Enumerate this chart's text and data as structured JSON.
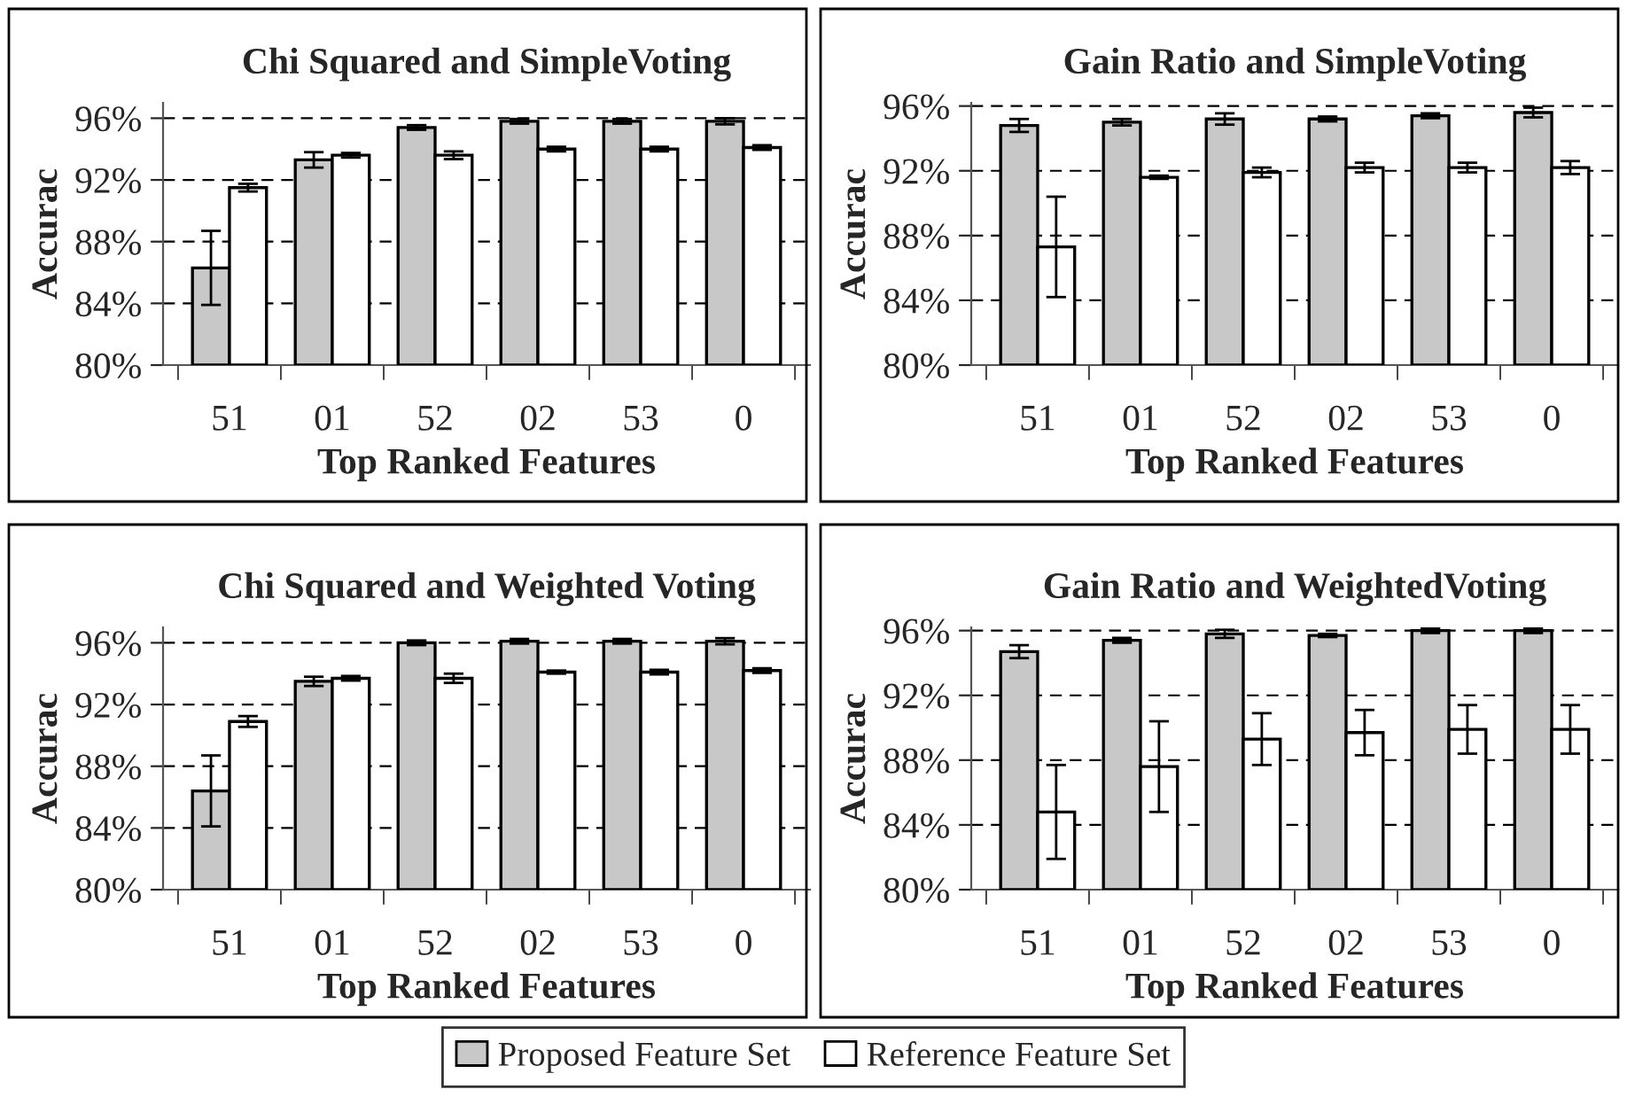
{
  "chart_data": [
    {
      "type": "bar",
      "title": "Chi Squared and SimpleVoting",
      "xlabel": "Top Ranked Features",
      "ylabel": "Accurac",
      "categories": [
        "51",
        "01",
        "52",
        "02",
        "53",
        "0"
      ],
      "ylim": [
        80,
        97
      ],
      "yticks": [
        {
          "value": 80,
          "label": "80%"
        },
        {
          "value": 84,
          "label": "84%"
        },
        {
          "value": 88,
          "label": "88%"
        },
        {
          "value": 92,
          "label": "92%"
        },
        {
          "value": 96,
          "label": "96%"
        }
      ],
      "grid": "y",
      "legend": "bottom",
      "series": [
        {
          "name": "Proposed Feature Set",
          "color": "#c8c8c8",
          "values": [
            86.3,
            93.3,
            95.4,
            95.8,
            95.8,
            95.8
          ],
          "errors": [
            2.4,
            0.5,
            0.15,
            0.15,
            0.15,
            0.2
          ]
        },
        {
          "name": "Reference Feature Set",
          "color": "#ffffff",
          "values": [
            91.5,
            93.6,
            93.6,
            94.0,
            94.0,
            94.1
          ],
          "errors": [
            0.25,
            0.15,
            0.25,
            0.15,
            0.15,
            0.15
          ]
        }
      ]
    },
    {
      "type": "bar",
      "title": "Gain Ratio and SimpleVoting",
      "xlabel": "Top Ranked Features",
      "ylabel": "Accurac",
      "categories": [
        "51",
        "01",
        "52",
        "02",
        "53",
        "0"
      ],
      "ylim": [
        80,
        96.2
      ],
      "yticks": [
        {
          "value": 80,
          "label": "80%"
        },
        {
          "value": 84,
          "label": "84%"
        },
        {
          "value": 88,
          "label": "88%"
        },
        {
          "value": 92,
          "label": "92%"
        },
        {
          "value": 96,
          "label": "96%"
        }
      ],
      "grid": "y",
      "series": [
        {
          "color": "#c8c8c8",
          "values": [
            94.8,
            95.0,
            95.2,
            95.2,
            95.4,
            95.6
          ],
          "errors": [
            0.4,
            0.2,
            0.35,
            0.15,
            0.15,
            0.3
          ]
        },
        {
          "color": "#ffffff",
          "values": [
            87.3,
            91.6,
            91.9,
            92.2,
            92.2,
            92.2
          ],
          "errors": [
            3.1,
            0.1,
            0.3,
            0.3,
            0.3,
            0.4
          ]
        }
      ]
    },
    {
      "type": "bar",
      "title": "Chi Squared and Weighted Voting",
      "xlabel": "Top Ranked Features",
      "ylabel": "Accurac",
      "categories": [
        "51",
        "01",
        "52",
        "02",
        "53",
        "0"
      ],
      "ylim": [
        80,
        97
      ],
      "yticks": [
        {
          "value": 80,
          "label": "80%"
        },
        {
          "value": 84,
          "label": "84%"
        },
        {
          "value": 88,
          "label": "88%"
        },
        {
          "value": 92,
          "label": "92%"
        },
        {
          "value": 96,
          "label": "96%"
        }
      ],
      "grid": "y",
      "series": [
        {
          "color": "#c8c8c8",
          "values": [
            86.4,
            93.5,
            96.0,
            96.1,
            96.1,
            96.1
          ],
          "errors": [
            2.3,
            0.3,
            0.15,
            0.15,
            0.15,
            0.2
          ]
        },
        {
          "color": "#ffffff",
          "values": [
            90.9,
            93.7,
            93.7,
            94.1,
            94.1,
            94.2
          ],
          "errors": [
            0.35,
            0.15,
            0.3,
            0.1,
            0.15,
            0.15
          ]
        }
      ]
    },
    {
      "type": "bar",
      "title": "Gain Ratio and WeightedVoting",
      "xlabel": "Top Ranked Features",
      "ylabel": "Accurac",
      "categories": [
        "51",
        "01",
        "52",
        "02",
        "53",
        "0"
      ],
      "ylim": [
        80,
        96.2
      ],
      "yticks": [
        {
          "value": 80,
          "label": "80%"
        },
        {
          "value": 84,
          "label": "84%"
        },
        {
          "value": 88,
          "label": "88%"
        },
        {
          "value": 92,
          "label": "92%"
        },
        {
          "value": 96,
          "label": "96%"
        }
      ],
      "grid": "y",
      "series": [
        {
          "color": "#c8c8c8",
          "values": [
            94.7,
            95.4,
            95.8,
            95.7,
            96.0,
            96.0
          ],
          "errors": [
            0.4,
            0.15,
            0.25,
            0.1,
            0.15,
            0.15
          ]
        },
        {
          "color": "#ffffff",
          "values": [
            84.8,
            87.6,
            89.3,
            89.7,
            89.9,
            89.9
          ],
          "errors": [
            2.9,
            2.8,
            1.6,
            1.4,
            1.5,
            1.5
          ]
        }
      ]
    }
  ]
}
